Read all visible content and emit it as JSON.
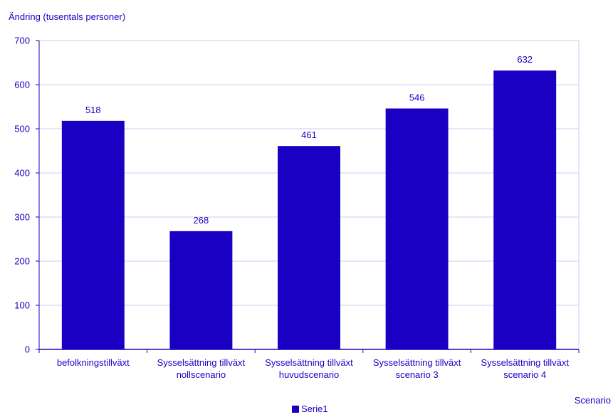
{
  "chart_data": {
    "type": "bar",
    "ylabel": "Ändring (tusentals personer)",
    "xlabel": "Scenario",
    "categories": [
      [
        "befolkningstillväxt"
      ],
      [
        "Sysselsättning tillväxt",
        "nollscenario"
      ],
      [
        "Sysselsättning tillväxt",
        "huvudscenario"
      ],
      [
        "Sysselsättning tillväxt",
        "scenario 3"
      ],
      [
        "Sysselsättning tillväxt",
        "scenario 4"
      ]
    ],
    "series": [
      {
        "name": "Serie1",
        "values": [
          518,
          268,
          461,
          546,
          632
        ]
      }
    ],
    "ylim": [
      0,
      700
    ],
    "yticks": [
      0,
      100,
      200,
      300,
      400,
      500,
      600,
      700
    ],
    "grid": true,
    "legend_position": "bottom-center",
    "colors": {
      "bar": "#1a00c2",
      "text": "#1a00c2",
      "grid": "#d0ccf2",
      "axis": "#1a00c2"
    }
  }
}
